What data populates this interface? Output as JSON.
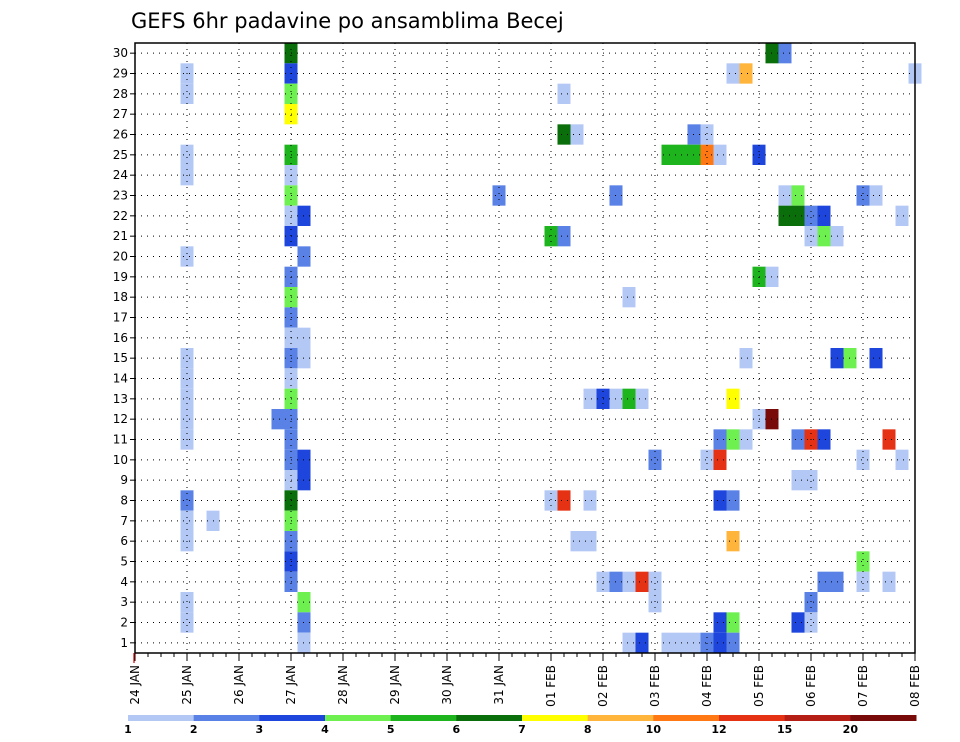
{
  "chart_data": {
    "type": "heatmap",
    "title": "GEFS 6hr padavine po ansamblima Becej",
    "xlabel": "",
    "ylabel": "",
    "y_tick_labels": [
      "1",
      "2",
      "3",
      "4",
      "5",
      "6",
      "7",
      "8",
      "9",
      "10",
      "11",
      "12",
      "13",
      "14",
      "15",
      "16",
      "17",
      "18",
      "19",
      "20",
      "21",
      "22",
      "23",
      "24",
      "25",
      "26",
      "27",
      "28",
      "29",
      "30"
    ],
    "x_tick_labels": [
      "24 JAN",
      "25 JAN",
      "26 JAN",
      "27 JAN",
      "28 JAN",
      "29 JAN",
      "30 JAN",
      "31 JAN",
      "01 FEB",
      "02 FEB",
      "03 FEB",
      "04 FEB",
      "05 FEB",
      "06 FEB",
      "07 FEB",
      "08 FEB"
    ],
    "x_range_steps": [
      0,
      60
    ],
    "y_range": [
      0.5,
      30.5
    ],
    "grid": true,
    "legend": {
      "placement": "bottom",
      "labels": [
        "1",
        "2",
        "3",
        "4",
        "5",
        "6",
        "7",
        "8",
        "10",
        "12",
        "15",
        "20"
      ],
      "colors": [
        "#b4c8f5",
        "#5a82e6",
        "#1e46dc",
        "#6ef050",
        "#1eb41e",
        "#0a6e0a",
        "#ffff00",
        "#ffb43c",
        "#ff7814",
        "#e63214",
        "#b41e14",
        "#780a0a"
      ]
    },
    "colors": {
      "c1": "#b4c8f5",
      "c2": "#5a82e6",
      "c3": "#1e46dc",
      "c4": "#6ef050",
      "c5": "#1eb41e",
      "c6": "#0a6e0a",
      "c7": "#ffff00",
      "c8": "#ffb43c",
      "c10": "#ff7814",
      "c12": "#e63214",
      "c15": "#b41e14",
      "c20": "#780a0a"
    },
    "cells": [
      {
        "x": 4,
        "y": 29,
        "c": "c1"
      },
      {
        "x": 4,
        "y": 28,
        "c": "c1"
      },
      {
        "x": 4,
        "y": 25,
        "c": "c1"
      },
      {
        "x": 4,
        "y": 24,
        "c": "c1"
      },
      {
        "x": 4,
        "y": 20,
        "c": "c1"
      },
      {
        "x": 4,
        "y": 15,
        "c": "c1"
      },
      {
        "x": 4,
        "y": 14,
        "c": "c1"
      },
      {
        "x": 4,
        "y": 13,
        "c": "c1"
      },
      {
        "x": 4,
        "y": 12,
        "c": "c1"
      },
      {
        "x": 4,
        "y": 11,
        "c": "c1"
      },
      {
        "x": 4,
        "y": 8,
        "c": "c2"
      },
      {
        "x": 4,
        "y": 7,
        "c": "c1"
      },
      {
        "x": 4,
        "y": 6,
        "c": "c1"
      },
      {
        "x": 4,
        "y": 3,
        "c": "c1"
      },
      {
        "x": 4,
        "y": 2,
        "c": "c1"
      },
      {
        "x": 6,
        "y": 7,
        "c": "c1"
      },
      {
        "x": 12,
        "y": 30,
        "c": "c6"
      },
      {
        "x": 12,
        "y": 29,
        "c": "c3"
      },
      {
        "x": 12,
        "y": 28,
        "c": "c4"
      },
      {
        "x": 12,
        "y": 27,
        "c": "c7"
      },
      {
        "x": 12,
        "y": 25,
        "c": "c5"
      },
      {
        "x": 12,
        "y": 24,
        "c": "c1"
      },
      {
        "x": 12,
        "y": 23,
        "c": "c4"
      },
      {
        "x": 12,
        "y": 22,
        "c": "c1"
      },
      {
        "x": 12,
        "y": 21,
        "c": "c3"
      },
      {
        "x": 12,
        "y": 19,
        "c": "c2"
      },
      {
        "x": 12,
        "y": 18,
        "c": "c4"
      },
      {
        "x": 12,
        "y": 17,
        "c": "c2"
      },
      {
        "x": 12,
        "y": 16,
        "c": "c1"
      },
      {
        "x": 12,
        "y": 15,
        "c": "c2"
      },
      {
        "x": 12,
        "y": 14,
        "c": "c1"
      },
      {
        "x": 12,
        "y": 13,
        "c": "c4"
      },
      {
        "x": 11,
        "y": 12,
        "c": "c2"
      },
      {
        "x": 12,
        "y": 12,
        "c": "c2"
      },
      {
        "x": 12,
        "y": 11,
        "c": "c2"
      },
      {
        "x": 12,
        "y": 10,
        "c": "c2"
      },
      {
        "x": 12,
        "y": 9,
        "c": "c1"
      },
      {
        "x": 12,
        "y": 8,
        "c": "c6"
      },
      {
        "x": 12,
        "y": 7,
        "c": "c4"
      },
      {
        "x": 12,
        "y": 6,
        "c": "c2"
      },
      {
        "x": 12,
        "y": 5,
        "c": "c3"
      },
      {
        "x": 12,
        "y": 4,
        "c": "c2"
      },
      {
        "x": 12,
        "y": 0,
        "c": "c1"
      },
      {
        "x": 13,
        "y": 22,
        "c": "c3"
      },
      {
        "x": 13,
        "y": 20,
        "c": "c2"
      },
      {
        "x": 13,
        "y": 16,
        "c": "c1"
      },
      {
        "x": 13,
        "y": 15,
        "c": "c1"
      },
      {
        "x": 13,
        "y": 10,
        "c": "c3"
      },
      {
        "x": 13,
        "y": 9,
        "c": "c3"
      },
      {
        "x": 13,
        "y": 3,
        "c": "c4"
      },
      {
        "x": 13,
        "y": 2,
        "c": "c2"
      },
      {
        "x": 13,
        "y": 1,
        "c": "c1"
      },
      {
        "x": 28,
        "y": 23,
        "c": "c2"
      },
      {
        "x": 32,
        "y": 21,
        "c": "c5"
      },
      {
        "x": 32,
        "y": 8,
        "c": "c1"
      },
      {
        "x": 33,
        "y": 28,
        "c": "c1"
      },
      {
        "x": 33,
        "y": 26,
        "c": "c6"
      },
      {
        "x": 33,
        "y": 21,
        "c": "c2"
      },
      {
        "x": 33,
        "y": 8,
        "c": "c12"
      },
      {
        "x": 34,
        "y": 26,
        "c": "c1"
      },
      {
        "x": 34,
        "y": 6,
        "c": "c1"
      },
      {
        "x": 35,
        "y": 6,
        "c": "c1"
      },
      {
        "x": 35,
        "y": 13,
        "c": "c1"
      },
      {
        "x": 35,
        "y": 8,
        "c": "c1"
      },
      {
        "x": 36,
        "y": 13,
        "c": "c3"
      },
      {
        "x": 36,
        "y": 4,
        "c": "c1"
      },
      {
        "x": 37,
        "y": 23,
        "c": "c2"
      },
      {
        "x": 37,
        "y": 13,
        "c": "c1"
      },
      {
        "x": 37,
        "y": 4,
        "c": "c2"
      },
      {
        "x": 38,
        "y": 18,
        "c": "c1"
      },
      {
        "x": 38,
        "y": 13,
        "c": "c5"
      },
      {
        "x": 38,
        "y": 4,
        "c": "c1"
      },
      {
        "x": 38,
        "y": 1,
        "c": "c1"
      },
      {
        "x": 39,
        "y": 13,
        "c": "c1"
      },
      {
        "x": 39,
        "y": 4,
        "c": "c12"
      },
      {
        "x": 39,
        "y": 1,
        "c": "c3"
      },
      {
        "x": 40,
        "y": 10,
        "c": "c2"
      },
      {
        "x": 40,
        "y": 3,
        "c": "c1"
      },
      {
        "x": 40,
        "y": 4,
        "c": "c1"
      },
      {
        "x": 41,
        "y": 25,
        "c": "c5"
      },
      {
        "x": 41,
        "y": 1,
        "c": "c1"
      },
      {
        "x": 42,
        "y": 25,
        "c": "c5"
      },
      {
        "x": 42,
        "y": 1,
        "c": "c1"
      },
      {
        "x": 43,
        "y": 26,
        "c": "c2"
      },
      {
        "x": 43,
        "y": 25,
        "c": "c5"
      },
      {
        "x": 43,
        "y": 1,
        "c": "c1"
      },
      {
        "x": 44,
        "y": 26,
        "c": "c1"
      },
      {
        "x": 44,
        "y": 25,
        "c": "c10"
      },
      {
        "x": 44,
        "y": 10,
        "c": "c1"
      },
      {
        "x": 44,
        "y": 1,
        "c": "c2"
      },
      {
        "x": 45,
        "y": 25,
        "c": "c1"
      },
      {
        "x": 45,
        "y": 11,
        "c": "c2"
      },
      {
        "x": 45,
        "y": 10,
        "c": "c12"
      },
      {
        "x": 45,
        "y": 8,
        "c": "c3"
      },
      {
        "x": 45,
        "y": 2,
        "c": "c3"
      },
      {
        "x": 45,
        "y": 1,
        "c": "c3"
      },
      {
        "x": 46,
        "y": 29,
        "c": "c1"
      },
      {
        "x": 46,
        "y": 13,
        "c": "c7"
      },
      {
        "x": 46,
        "y": 11,
        "c": "c4"
      },
      {
        "x": 46,
        "y": 8,
        "c": "c2"
      },
      {
        "x": 46,
        "y": 6,
        "c": "c8"
      },
      {
        "x": 46,
        "y": 2,
        "c": "c4"
      },
      {
        "x": 46,
        "y": 1,
        "c": "c2"
      },
      {
        "x": 47,
        "y": 29,
        "c": "c8"
      },
      {
        "x": 47,
        "y": 15,
        "c": "c1"
      },
      {
        "x": 47,
        "y": 11,
        "c": "c1"
      },
      {
        "x": 48,
        "y": 25,
        "c": "c3"
      },
      {
        "x": 48,
        "y": 19,
        "c": "c5"
      },
      {
        "x": 48,
        "y": 12,
        "c": "c1"
      },
      {
        "x": 49,
        "y": 30,
        "c": "c6"
      },
      {
        "x": 49,
        "y": 19,
        "c": "c1"
      },
      {
        "x": 49,
        "y": 12,
        "c": "c20"
      },
      {
        "x": 50,
        "y": 30,
        "c": "c2"
      },
      {
        "x": 50,
        "y": 23,
        "c": "c1"
      },
      {
        "x": 50,
        "y": 22,
        "c": "c6"
      },
      {
        "x": 51,
        "y": 23,
        "c": "c4"
      },
      {
        "x": 51,
        "y": 22,
        "c": "c6"
      },
      {
        "x": 51,
        "y": 11,
        "c": "c2"
      },
      {
        "x": 51,
        "y": 9,
        "c": "c1"
      },
      {
        "x": 51,
        "y": 2,
        "c": "c3"
      },
      {
        "x": 52,
        "y": 22,
        "c": "c2"
      },
      {
        "x": 52,
        "y": 21,
        "c": "c1"
      },
      {
        "x": 52,
        "y": 11,
        "c": "c12"
      },
      {
        "x": 52,
        "y": 9,
        "c": "c1"
      },
      {
        "x": 52,
        "y": 3,
        "c": "c2"
      },
      {
        "x": 52,
        "y": 2,
        "c": "c1"
      },
      {
        "x": 53,
        "y": 22,
        "c": "c3"
      },
      {
        "x": 53,
        "y": 21,
        "c": "c4"
      },
      {
        "x": 53,
        "y": 11,
        "c": "c3"
      },
      {
        "x": 53,
        "y": 4,
        "c": "c2"
      },
      {
        "x": 54,
        "y": 21,
        "c": "c1"
      },
      {
        "x": 54,
        "y": 15,
        "c": "c3"
      },
      {
        "x": 54,
        "y": 4,
        "c": "c2"
      },
      {
        "x": 55,
        "y": 15,
        "c": "c4"
      },
      {
        "x": 56,
        "y": 23,
        "c": "c2"
      },
      {
        "x": 56,
        "y": 10,
        "c": "c1"
      },
      {
        "x": 56,
        "y": 5,
        "c": "c4"
      },
      {
        "x": 56,
        "y": 4,
        "c": "c1"
      },
      {
        "x": 57,
        "y": 23,
        "c": "c1"
      },
      {
        "x": 57,
        "y": 15,
        "c": "c3"
      },
      {
        "x": 58,
        "y": 11,
        "c": "c12"
      },
      {
        "x": 58,
        "y": 4,
        "c": "c1"
      },
      {
        "x": 59,
        "y": 22,
        "c": "c1"
      },
      {
        "x": 59,
        "y": 10,
        "c": "c1"
      },
      {
        "x": 60,
        "y": 29,
        "c": "c1"
      }
    ]
  }
}
